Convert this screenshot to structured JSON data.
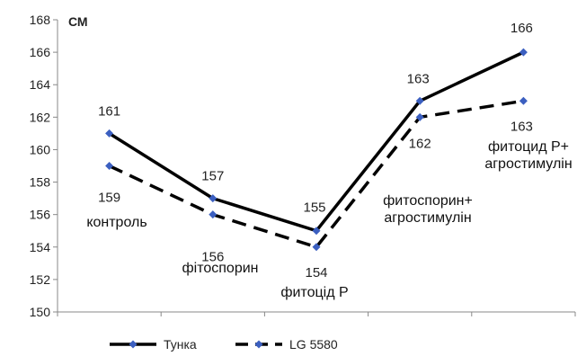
{
  "chart_data": {
    "type": "line",
    "ylabel": "СМ",
    "ylim": [
      150,
      168
    ],
    "yticks": [
      150,
      152,
      154,
      156,
      158,
      160,
      162,
      164,
      166,
      168
    ],
    "grid": false,
    "legend_position": "bottom",
    "categories": [
      [
        "контроль"
      ],
      [
        "фітоспорин"
      ],
      [
        "фитоцід  Р"
      ],
      [
        "фитоспорин+",
        "агростимулін"
      ],
      [
        "фитоцид Р+",
        "агростимулін"
      ]
    ],
    "series": [
      {
        "name": "Тунка",
        "values": [
          161,
          157,
          155,
          163,
          166
        ],
        "color": "#000000",
        "style": "solid",
        "marker_color": "#3b5fc0"
      },
      {
        "name": "LG 5580",
        "values": [
          159,
          156,
          154,
          162,
          163
        ],
        "color": "#000000",
        "style": "dashed",
        "marker_color": "#3b5fc0"
      }
    ]
  }
}
